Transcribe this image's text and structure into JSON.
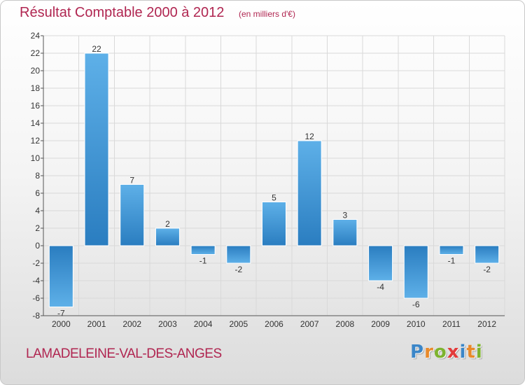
{
  "header": {
    "title": "Résultat Comptable 2000 à 2012",
    "subtitle": "(en milliers d'€)"
  },
  "footer": {
    "commune": "LAMADELEINE-VAL-DES-ANGES",
    "brand_letters": [
      {
        "char": "P",
        "color": "#3b86c8"
      },
      {
        "char": "r",
        "color": "#e8892a"
      },
      {
        "char": "o",
        "color": "#7db32f"
      },
      {
        "char": "x",
        "color": "#e23b3b"
      },
      {
        "char": "i",
        "color": "#3b86c8"
      },
      {
        "char": "t",
        "color": "#e8892a"
      },
      {
        "char": "i",
        "color": "#7db32f"
      }
    ]
  },
  "colors": {
    "title": "#b02651",
    "bar_dark": "#2a7dc0",
    "bar_light": "#5eb0e8",
    "grid": "#d9d9d9",
    "axis": "#555555"
  },
  "chart_data": {
    "type": "bar",
    "title": "Résultat Comptable 2000 à 2012",
    "subtitle": "(en milliers d'€)",
    "categories": [
      "2000",
      "2001",
      "2002",
      "2003",
      "2004",
      "2005",
      "2006",
      "2007",
      "2008",
      "2009",
      "2010",
      "2011",
      "2012"
    ],
    "values": [
      -7,
      22,
      7,
      2,
      -1,
      -2,
      5,
      12,
      3,
      -4,
      -6,
      -1,
      -2
    ],
    "data_labels": [
      "-7",
      "22",
      "7",
      "2",
      "-1",
      "-2",
      "5",
      "12",
      "3",
      "-4",
      "-6",
      "-1",
      "-2"
    ],
    "xlabel": "",
    "ylabel": "",
    "ylim": [
      -8,
      24
    ],
    "yticks": [
      -8,
      -6,
      -4,
      -2,
      0,
      2,
      4,
      6,
      8,
      10,
      12,
      14,
      16,
      18,
      20,
      22,
      24
    ],
    "ytick_labels": [
      "-8",
      "-6",
      "-4",
      "-2",
      "0",
      "2",
      "4",
      "6",
      "8",
      "10",
      "12",
      "14",
      "16",
      "18",
      "20",
      "22",
      "24"
    ],
    "grid": true
  }
}
